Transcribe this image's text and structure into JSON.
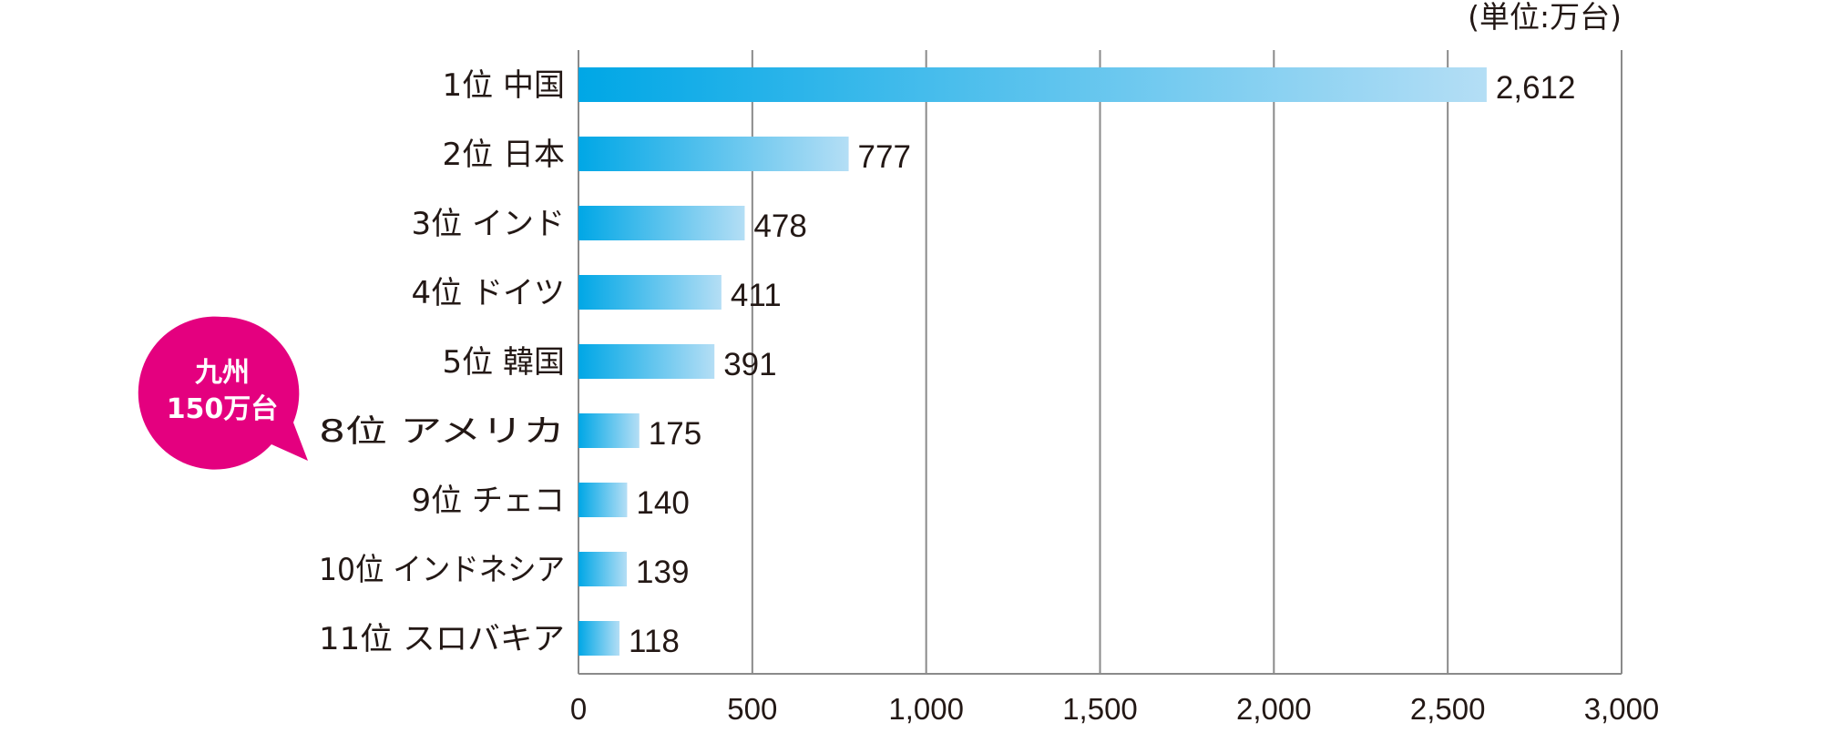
{
  "unit_label": "(単位:万台)",
  "callout": {
    "line1": "九州",
    "line2": "150万台",
    "color": "#e4007f"
  },
  "colors": {
    "bar_start": "#00a7e6",
    "bar_end": "#b4def5",
    "grid": "#8a8a8a",
    "text": "#231815"
  },
  "chart_data": {
    "type": "bar",
    "orientation": "horizontal",
    "categories": [
      "1位 中国",
      "2位 日本",
      "3位 インド",
      "4位 ドイツ",
      "5位 韓国",
      "8位 アメリカ",
      "9位 チェコ",
      "10位 インドネシア",
      "11位 スロバキア"
    ],
    "values": [
      2612,
      777,
      478,
      411,
      391,
      175,
      140,
      139,
      118
    ],
    "value_labels": [
      "2,612",
      "777",
      "478",
      "411",
      "391",
      "175",
      "140",
      "139",
      "118"
    ],
    "xlim": [
      0,
      3000
    ],
    "x_ticks": [
      0,
      500,
      1000,
      1500,
      2000,
      2500,
      3000
    ],
    "x_tick_labels": [
      "0",
      "500",
      "1,000",
      "1,500",
      "2,000",
      "2,500",
      "3,000"
    ],
    "grid": true
  }
}
